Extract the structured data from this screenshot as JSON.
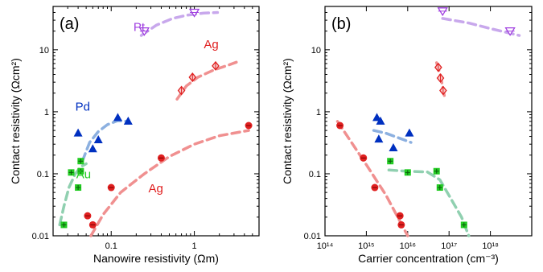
{
  "chart_data": [
    {
      "type": "scatter",
      "panel_label": "(a)",
      "xlabel": "Nanowire resistivity (Ωm)",
      "ylabel": "Contact resistivity (Ωcm²)",
      "x_scale": "log",
      "y_scale": "log",
      "xlim": [
        0.02,
        6
      ],
      "ylim": [
        0.01,
        50
      ],
      "x_ticks": [
        0.1,
        1
      ],
      "x_tick_labels": [
        "0.1",
        "1"
      ],
      "y_ticks": [
        0.01,
        0.1,
        1,
        10
      ],
      "y_tick_labels": [
        "0.01",
        "0.1",
        "1",
        "10"
      ],
      "grid": false,
      "legend": "none",
      "series": [
        {
          "name": "Pt",
          "color": "#a040e0",
          "fit_color": "#c8a8ec",
          "marker": "triangle-down-open",
          "label_pos": [
            0.185,
            20
          ],
          "points": [
            [
              0.25,
              20
            ],
            [
              1.0,
              40
            ]
          ],
          "fit": [
            [
              0.23,
              17
            ],
            [
              0.35,
              25
            ],
            [
              0.55,
              32
            ],
            [
              0.8,
              36
            ],
            [
              1.3,
              39
            ],
            [
              1.9,
              40
            ]
          ]
        },
        {
          "name": "Ag",
          "color": "#e02020",
          "fit_color": "#f09090",
          "marker": "diamond-open",
          "label_pos": [
            1.3,
            10.5
          ],
          "points": [
            [
              0.7,
              2.2
            ],
            [
              0.95,
              3.6
            ],
            [
              1.8,
              5.5
            ]
          ],
          "fit": [
            [
              0.62,
              1.6
            ],
            [
              0.8,
              2.6
            ],
            [
              1.1,
              3.6
            ],
            [
              1.7,
              4.7
            ],
            [
              2.6,
              5.7
            ],
            [
              3.2,
              6.3
            ]
          ]
        },
        {
          "name": "Pd",
          "color": "#0030c0",
          "fit_color": "#8cb0e0",
          "marker": "triangle-up",
          "label_pos": [
            0.037,
            1.05
          ],
          "points": [
            [
              0.04,
              0.45
            ],
            [
              0.06,
              0.25
            ],
            [
              0.07,
              0.35
            ],
            [
              0.12,
              0.8
            ],
            [
              0.16,
              0.7
            ]
          ],
          "fit": [
            [
              0.045,
              0.16
            ],
            [
              0.055,
              0.32
            ],
            [
              0.07,
              0.48
            ],
            [
              0.09,
              0.62
            ],
            [
              0.12,
              0.72
            ],
            [
              0.16,
              0.7
            ]
          ]
        },
        {
          "name": "Au",
          "color": "#22cc22",
          "fit_color": "#90d0b0",
          "marker": "square-cross",
          "label_pos": [
            0.038,
            0.085
          ],
          "points": [
            [
              0.027,
              0.015
            ],
            [
              0.033,
              0.105
            ],
            [
              0.04,
              0.06
            ],
            [
              0.043,
              0.11
            ],
            [
              0.043,
              0.16
            ]
          ],
          "fit": [
            [
              0.024,
              0.015
            ],
            [
              0.027,
              0.03
            ],
            [
              0.031,
              0.06
            ],
            [
              0.037,
              0.1
            ],
            [
              0.043,
              0.13
            ],
            [
              0.05,
              0.145
            ]
          ]
        },
        {
          "name": "Ag",
          "color": "#e02020",
          "fit_color": "#f09090",
          "marker": "circle-bar",
          "label_pos": [
            0.28,
            0.05
          ],
          "points": [
            [
              0.052,
              0.021
            ],
            [
              0.06,
              0.015
            ],
            [
              0.1,
              0.06
            ],
            [
              0.4,
              0.18
            ],
            [
              4.5,
              0.6
            ]
          ],
          "fit": [
            [
              0.057,
              0.01
            ],
            [
              0.08,
              0.022
            ],
            [
              0.13,
              0.05
            ],
            [
              0.25,
              0.1
            ],
            [
              0.5,
              0.19
            ],
            [
              1.0,
              0.3
            ],
            [
              2.0,
              0.41
            ],
            [
              4.5,
              0.5
            ]
          ]
        }
      ]
    },
    {
      "type": "scatter",
      "panel_label": "(b)",
      "xlabel": "Carrier concentration (cm⁻³)",
      "ylabel": "Contact resistivity (Ωcm²)",
      "x_scale": "log",
      "y_scale": "log",
      "xlim": [
        100000000000000.0,
        1e+19
      ],
      "ylim": [
        0.01,
        50
      ],
      "x_ticks": [
        100000000000000.0,
        1000000000000000.0,
        1e+16,
        1e+17,
        1e+18
      ],
      "x_tick_labels": [
        "10¹⁴",
        "10¹⁵",
        "10¹⁶",
        "10¹⁷",
        "10¹⁸"
      ],
      "y_ticks": [
        0.01,
        0.1,
        1,
        10
      ],
      "y_tick_labels": [
        "0.01",
        "0.1",
        "1",
        "10"
      ],
      "grid": false,
      "legend": "none",
      "series": [
        {
          "name": "Pt",
          "color": "#a040e0",
          "fit_color": "#c8a8ec",
          "marker": "triangle-down-open",
          "points": [
            [
              7e+16,
              42
            ],
            [
              3e+18,
              20
            ]
          ],
          "fit": [
            [
              7e+16,
              32
            ],
            [
              3e+17,
              27
            ],
            [
              1e+18,
              22
            ],
            [
              5e+18,
              17
            ]
          ]
        },
        {
          "name": "Ag",
          "color": "#e02020",
          "fit_color": "#f09090",
          "marker": "diamond-open",
          "points": [
            [
              5.5e+16,
              5.2
            ],
            [
              6.2e+16,
              3.5
            ],
            [
              7.2e+16,
              2.2
            ]
          ],
          "fit": [
            [
              5e+16,
              6.2
            ],
            [
              6.2e+16,
              3.9
            ],
            [
              8e+16,
              1.6
            ]
          ]
        },
        {
          "name": "Pd",
          "color": "#0030c0",
          "fit_color": "#8cb0e0",
          "marker": "triangle-up",
          "points": [
            [
              1800000000000000.0,
              0.8
            ],
            [
              2200000000000000.0,
              0.7
            ],
            [
              2000000000000000.0,
              0.36
            ],
            [
              4500000000000000.0,
              0.26
            ],
            [
              1.1e+16,
              0.45
            ]
          ],
          "fit": [
            [
              1500000000000000.0,
              0.5
            ],
            [
              3000000000000000.0,
              0.45
            ],
            [
              6000000000000000.0,
              0.38
            ],
            [
              1.2e+16,
              0.32
            ]
          ]
        },
        {
          "name": "Au",
          "color": "#22cc22",
          "fit_color": "#90d0b0",
          "marker": "square-cross",
          "points": [
            [
              3800000000000000.0,
              0.16
            ],
            [
              5e+16,
              0.11
            ],
            [
              1e+16,
              0.105
            ],
            [
              6e+16,
              0.06
            ],
            [
              2.3e+17,
              0.015
            ]
          ],
          "fit": [
            [
              3500000000000000.0,
              0.115
            ],
            [
              1e+16,
              0.11
            ],
            [
              3e+16,
              0.107
            ],
            [
              6e+16,
              0.08
            ],
            [
              1.1e+17,
              0.04
            ],
            [
              2e+17,
              0.02
            ],
            [
              3e+17,
              0.01
            ]
          ]
        },
        {
          "name": "Ag",
          "color": "#e02020",
          "fit_color": "#f09090",
          "marker": "circle-bar",
          "points": [
            [
              230000000000000.0,
              0.6
            ],
            [
              850000000000000.0,
              0.18
            ],
            [
              1600000000000000.0,
              0.06
            ],
            [
              6500000000000000.0,
              0.021
            ],
            [
              7000000000000000.0,
              0.015
            ]
          ],
          "fit": [
            [
              200000000000000.0,
              0.7
            ],
            [
              1000000000000000.0,
              0.14
            ],
            [
              3000000000000000.0,
              0.045
            ],
            [
              1e+16,
              0.01
            ]
          ]
        }
      ]
    }
  ]
}
